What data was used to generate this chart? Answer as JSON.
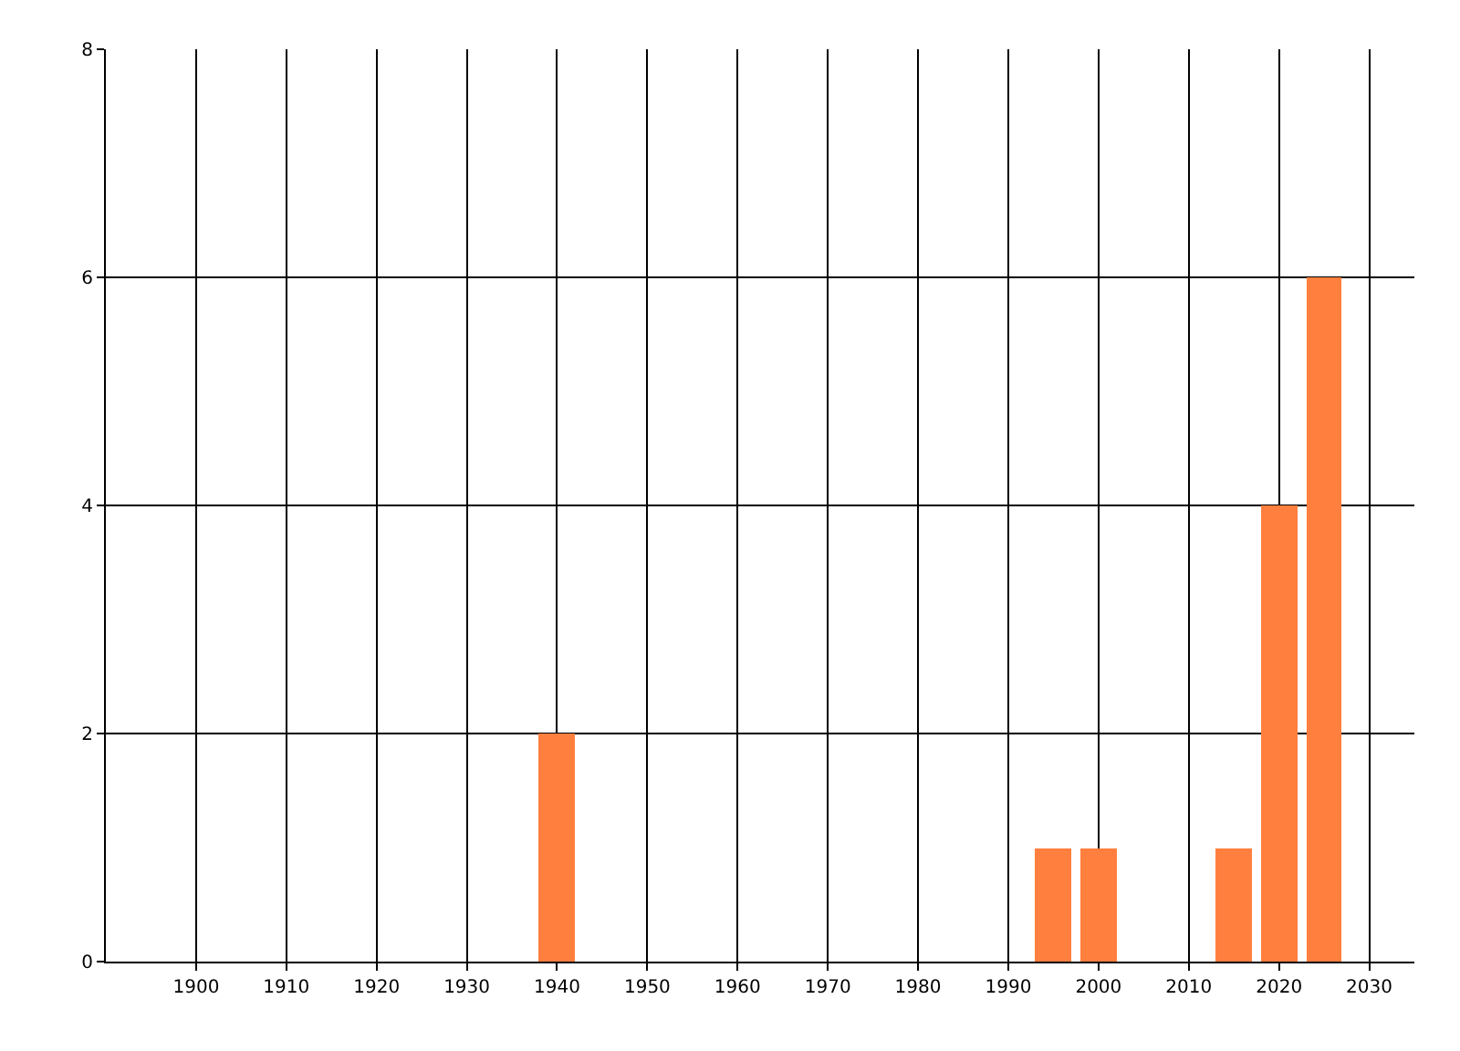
{
  "chart_data": {
    "type": "bar",
    "x": [
      1940,
      1995,
      2000,
      2015,
      2020,
      2025
    ],
    "values": [
      2,
      1,
      1,
      1,
      4,
      6
    ],
    "color": "#ff7f3f",
    "xlim": [
      1890,
      2035
    ],
    "xticks": [
      1900,
      1910,
      1920,
      1930,
      1940,
      1950,
      1960,
      1970,
      1980,
      1990,
      2000,
      2010,
      2020,
      2030
    ],
    "ylim": [
      0,
      8
    ],
    "yticks": [
      0,
      2,
      4,
      6,
      8
    ],
    "grid": true,
    "legend": false
  }
}
